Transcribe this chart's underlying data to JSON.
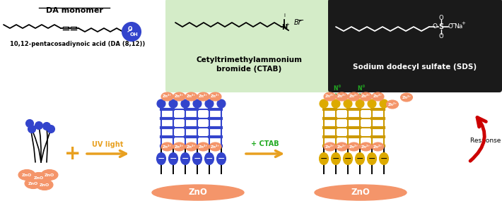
{
  "fig_width": 7.1,
  "fig_height": 2.85,
  "dpi": 100,
  "bg_color": "#ffffff",
  "da_monomer_title": "DA monomer",
  "da_monomer_label": "10,12-pentacosadiynoic acid (DA (8,12))",
  "ctab_label": "Cetyltrimethylammonium\nbromide (CTAB)",
  "sds_label": "Sodium dodecyl sulfate (SDS)",
  "ctab_bg": "#d4ecc8",
  "sds_bg": "#1a1a1a",
  "uv_arrow_color": "#e8a020",
  "ctab_text_color": "#22aa22",
  "red_arrow_color": "#cc0000",
  "zno_color": "#f4956a",
  "blue_ball_color": "#3344cc",
  "yellow_ball_color": "#ddaa00",
  "green_color": "#22aa22",
  "blue_pda_color": "#3344cc",
  "yellow_pda_color": "#cc9900"
}
